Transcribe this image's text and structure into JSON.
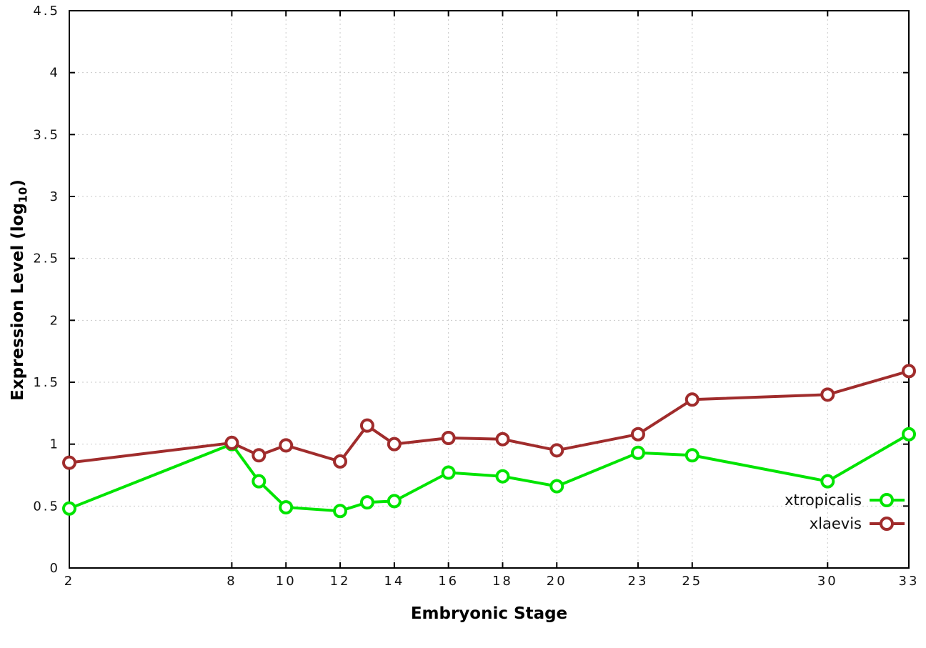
{
  "chart_data": {
    "type": "line",
    "title": "",
    "xlabel": "Embryonic Stage",
    "ylabel": "Expression Level (log10)",
    "ylabel_parts": {
      "main": "Expression Level (log",
      "sub": "10",
      "close": ")"
    },
    "xlim": [
      2,
      33
    ],
    "ylim": [
      0,
      4.5
    ],
    "grid": true,
    "legend_position": "inside-bottom-right",
    "x": [
      2,
      8,
      9,
      10,
      12,
      13,
      14,
      16,
      18,
      20,
      23,
      25,
      30,
      33
    ],
    "x_ticks": [
      2,
      8,
      10,
      12,
      14,
      16,
      18,
      20,
      23,
      25,
      30,
      33
    ],
    "x_tick_labels": [
      "2",
      "8",
      "10",
      "12",
      "14",
      "16",
      "18",
      "20",
      "23",
      "25",
      "30",
      "33"
    ],
    "y_ticks": [
      0,
      0.5,
      1,
      1.5,
      2,
      2.5,
      3,
      3.5,
      4,
      4.5
    ],
    "y_tick_labels": [
      "0",
      "0.5",
      "1",
      "1.5",
      "2",
      "2.5",
      "3",
      "3.5",
      "4",
      "4.5"
    ],
    "series": [
      {
        "name": "xtropicalis",
        "color": "#00e400",
        "marker": "open-circle",
        "values": [
          0.48,
          1.0,
          0.7,
          0.49,
          0.46,
          0.53,
          0.54,
          0.77,
          0.74,
          0.66,
          0.93,
          0.91,
          0.7,
          1.08
        ]
      },
      {
        "name": "xlaevis",
        "color": "#a02c2c",
        "marker": "open-circle",
        "values": [
          0.85,
          1.01,
          0.91,
          0.99,
          0.86,
          1.15,
          1.0,
          1.05,
          1.04,
          0.95,
          1.08,
          1.36,
          1.4,
          1.59
        ]
      }
    ]
  }
}
